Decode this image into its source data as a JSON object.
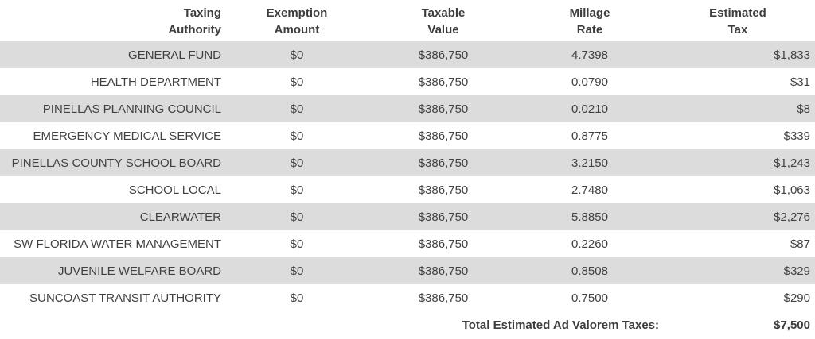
{
  "table": {
    "columns": [
      {
        "key": "authority",
        "label_line1": "Taxing",
        "label_line2": "Authority"
      },
      {
        "key": "exemption",
        "label_line1": "Exemption",
        "label_line2": "Amount"
      },
      {
        "key": "taxable",
        "label_line1": "Taxable",
        "label_line2": "Value"
      },
      {
        "key": "millage",
        "label_line1": "Millage",
        "label_line2": "Rate"
      },
      {
        "key": "estimated",
        "label_line1": "Estimated",
        "label_line2": "Tax"
      }
    ],
    "rows": [
      {
        "authority": "GENERAL FUND",
        "exemption": "$0",
        "taxable": "$386,750",
        "millage": "4.7398",
        "estimated": "$1,833"
      },
      {
        "authority": "HEALTH DEPARTMENT",
        "exemption": "$0",
        "taxable": "$386,750",
        "millage": "0.0790",
        "estimated": "$31"
      },
      {
        "authority": "PINELLAS PLANNING COUNCIL",
        "exemption": "$0",
        "taxable": "$386,750",
        "millage": "0.0210",
        "estimated": "$8"
      },
      {
        "authority": "EMERGENCY MEDICAL SERVICE",
        "exemption": "$0",
        "taxable": "$386,750",
        "millage": "0.8775",
        "estimated": "$339"
      },
      {
        "authority": "PINELLAS COUNTY SCHOOL BOARD",
        "exemption": "$0",
        "taxable": "$386,750",
        "millage": "3.2150",
        "estimated": "$1,243"
      },
      {
        "authority": "SCHOOL LOCAL",
        "exemption": "$0",
        "taxable": "$386,750",
        "millage": "2.7480",
        "estimated": "$1,063"
      },
      {
        "authority": "CLEARWATER",
        "exemption": "$0",
        "taxable": "$386,750",
        "millage": "5.8850",
        "estimated": "$2,276"
      },
      {
        "authority": "SW FLORIDA WATER MANAGEMENT",
        "exemption": "$0",
        "taxable": "$386,750",
        "millage": "0.2260",
        "estimated": "$87"
      },
      {
        "authority": "JUVENILE WELFARE BOARD",
        "exemption": "$0",
        "taxable": "$386,750",
        "millage": "0.8508",
        "estimated": "$329"
      },
      {
        "authority": "SUNCOAST TRANSIT AUTHORITY",
        "exemption": "$0",
        "taxable": "$386,750",
        "millage": "0.7500",
        "estimated": "$290"
      }
    ],
    "total": {
      "label": "Total Estimated Ad Valorem Taxes:",
      "value": "$7,500"
    },
    "colors": {
      "stripe": "#dcdcdc",
      "body_text": "#414141",
      "header_text": "#3d3d3d",
      "background": "#ffffff"
    }
  }
}
